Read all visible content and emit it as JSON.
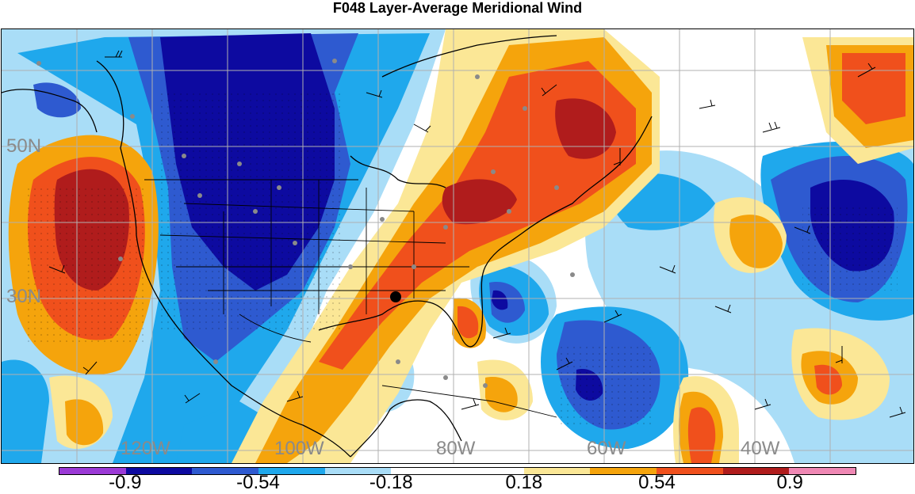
{
  "title": "F048 Layer-Average Meridional Wind",
  "lat_labels": [
    "50N",
    "30N"
  ],
  "lon_labels": [
    "120W",
    "100W",
    "80W",
    "60W",
    "40W"
  ],
  "colorbar": {
    "labels": [
      "-0.9",
      "-0.54",
      "-0.18",
      "0.18",
      "0.54",
      "0.9"
    ],
    "colors": [
      "#9b3ad6",
      "#0d0aa0",
      "#2e5ad0",
      "#1fa8ec",
      "#a9ddf7",
      "#ffffff",
      "#ffffff",
      "#fbe796",
      "#f5a40c",
      "#f0501c",
      "#b01c1c",
      "#ef88b4"
    ]
  }
}
